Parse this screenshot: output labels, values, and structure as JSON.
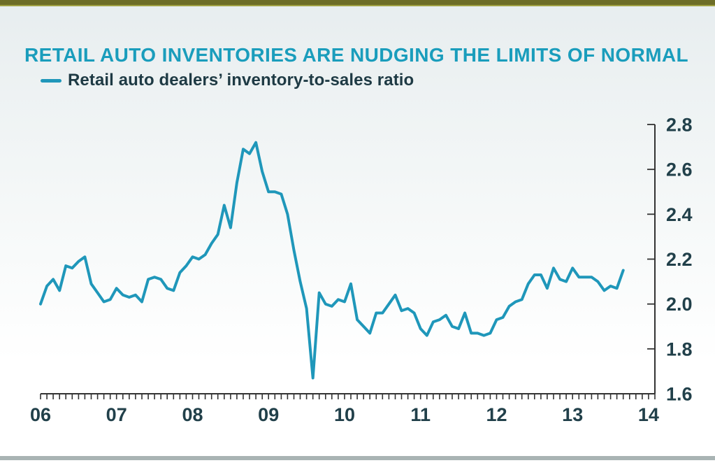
{
  "page": {
    "title": "RETAIL AUTO INVENTORIES ARE NUDGING THE LIMITS OF NORMAL",
    "legend_label": "Retail auto dealers’ inventory-to-sales ratio"
  },
  "colors": {
    "title": "#1a9dbc",
    "line": "#1f97ba",
    "axis": "#333333",
    "tick_label": "#21404a",
    "top_accent": "#6d6d27",
    "top_accent_sub": "#a0a143",
    "bottom_bar": "#a9b4b4",
    "legend_text": "#1e3a44"
  },
  "chart_data": {
    "type": "line",
    "title": "RETAIL AUTO INVENTORIES ARE NUDGING THE LIMITS OF NORMAL",
    "xlabel": "",
    "ylabel": "",
    "grid": false,
    "y_axis_side": "right",
    "legend_position": "top-left",
    "ylim": [
      1.6,
      2.8
    ],
    "y_ticks": [
      1.6,
      1.8,
      2.0,
      2.2,
      2.4,
      2.6,
      2.8
    ],
    "x_tick_labels": [
      "06",
      "07",
      "08",
      "09",
      "10",
      "11",
      "12",
      "13",
      "14"
    ],
    "x_minor_ticks_per_year": 12,
    "x_total_months": 97,
    "series": [
      {
        "name": "Retail auto dealers’ inventory-to-sales ratio",
        "start": "2006-01",
        "frequency": "monthly",
        "values": [
          2.0,
          2.08,
          2.11,
          2.06,
          2.17,
          2.16,
          2.19,
          2.21,
          2.09,
          2.05,
          2.01,
          2.02,
          2.07,
          2.04,
          2.03,
          2.04,
          2.01,
          2.11,
          2.12,
          2.11,
          2.07,
          2.06,
          2.14,
          2.17,
          2.21,
          2.2,
          2.22,
          2.27,
          2.31,
          2.44,
          2.34,
          2.54,
          2.69,
          2.67,
          2.72,
          2.59,
          2.5,
          2.5,
          2.49,
          2.4,
          2.24,
          2.1,
          1.98,
          1.67,
          2.05,
          2.0,
          1.99,
          2.02,
          2.01,
          2.09,
          1.93,
          1.9,
          1.87,
          1.96,
          1.96,
          2.0,
          2.04,
          1.97,
          1.98,
          1.96,
          1.89,
          1.86,
          1.92,
          1.93,
          1.95,
          1.9,
          1.89,
          1.96,
          1.87,
          1.87,
          1.86,
          1.87,
          1.93,
          1.94,
          1.99,
          2.01,
          2.02,
          2.09,
          2.13,
          2.13,
          2.07,
          2.16,
          2.11,
          2.1,
          2.16,
          2.12,
          2.12,
          2.12,
          2.1,
          2.06,
          2.08,
          2.07,
          2.15
        ]
      }
    ]
  }
}
